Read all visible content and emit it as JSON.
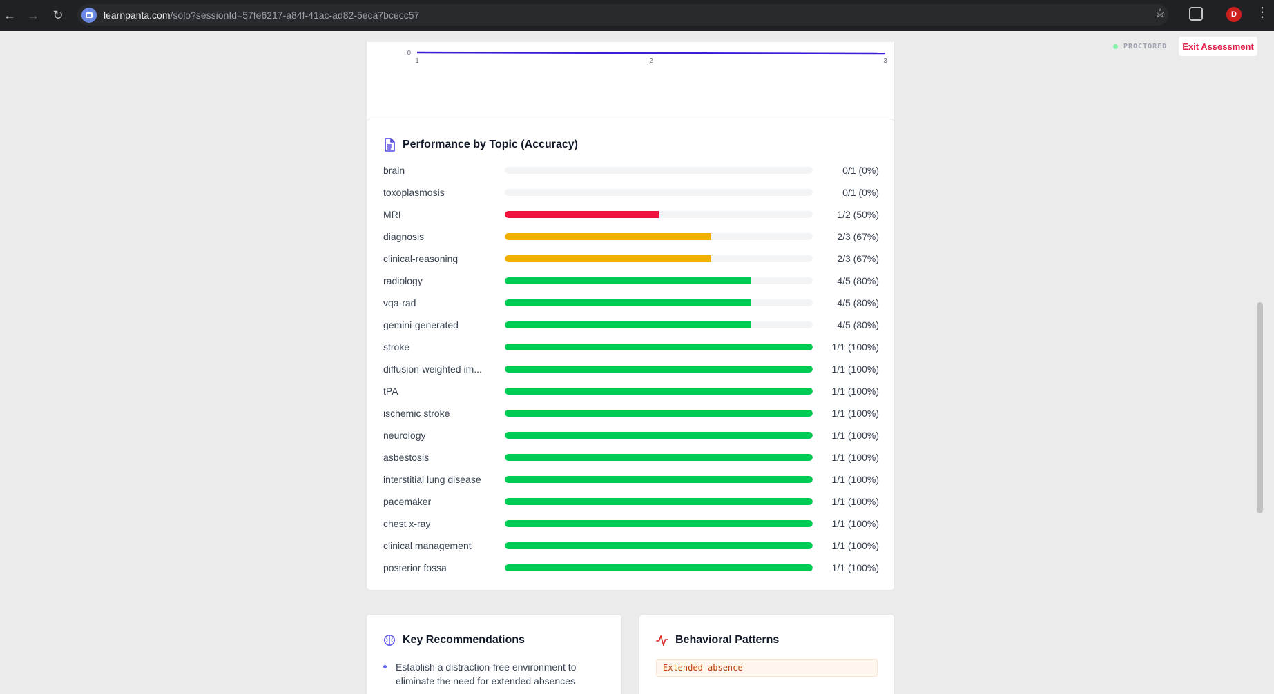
{
  "browser": {
    "url_domain": "learnpanta.com",
    "url_path": "/solo?sessionId=57fe6217-a84f-41ac-ad82-5eca7bcecc57",
    "profile_initial": "D"
  },
  "header": {
    "proctored_label": "PROCTORED",
    "exit_label": "Exit Assessment"
  },
  "trend_chart": {
    "chart_data": {
      "type": "line",
      "x": [
        1,
        2,
        3
      ],
      "values": [
        0,
        0,
        0
      ],
      "x_tick_labels": [
        "1",
        "2",
        "3"
      ],
      "y_tick_labels": [
        "0"
      ],
      "line_color": "#3b1fd6"
    }
  },
  "topics": {
    "title": "Performance by Topic (Accuracy)",
    "colors": {
      "low": "#f0143c",
      "mid": "#f0b000",
      "high": "#00cc55"
    },
    "items": [
      {
        "label": "brain",
        "score": "0/1 (0%)",
        "pct": 0,
        "level": "low"
      },
      {
        "label": "toxoplasmosis",
        "score": "0/1 (0%)",
        "pct": 0,
        "level": "low"
      },
      {
        "label": "MRI",
        "score": "1/2 (50%)",
        "pct": 50,
        "level": "low"
      },
      {
        "label": "diagnosis",
        "score": "2/3 (67%)",
        "pct": 67,
        "level": "mid"
      },
      {
        "label": "clinical-reasoning",
        "score": "2/3 (67%)",
        "pct": 67,
        "level": "mid"
      },
      {
        "label": "radiology",
        "score": "4/5 (80%)",
        "pct": 80,
        "level": "high"
      },
      {
        "label": "vqa-rad",
        "score": "4/5 (80%)",
        "pct": 80,
        "level": "high"
      },
      {
        "label": "gemini-generated",
        "score": "4/5 (80%)",
        "pct": 80,
        "level": "high"
      },
      {
        "label": "stroke",
        "score": "1/1 (100%)",
        "pct": 100,
        "level": "high"
      },
      {
        "label": "diffusion-weighted im...",
        "score": "1/1 (100%)",
        "pct": 100,
        "level": "high"
      },
      {
        "label": "tPA",
        "score": "1/1 (100%)",
        "pct": 100,
        "level": "high"
      },
      {
        "label": "ischemic stroke",
        "score": "1/1 (100%)",
        "pct": 100,
        "level": "high"
      },
      {
        "label": "neurology",
        "score": "1/1 (100%)",
        "pct": 100,
        "level": "high"
      },
      {
        "label": "asbestosis",
        "score": "1/1 (100%)",
        "pct": 100,
        "level": "high"
      },
      {
        "label": "interstitial lung disease",
        "score": "1/1 (100%)",
        "pct": 100,
        "level": "high"
      },
      {
        "label": "pacemaker",
        "score": "1/1 (100%)",
        "pct": 100,
        "level": "high"
      },
      {
        "label": "chest x-ray",
        "score": "1/1 (100%)",
        "pct": 100,
        "level": "high"
      },
      {
        "label": "clinical management",
        "score": "1/1 (100%)",
        "pct": 100,
        "level": "high"
      },
      {
        "label": "posterior fossa",
        "score": "1/1 (100%)",
        "pct": 100,
        "level": "high"
      }
    ]
  },
  "recommendations": {
    "title": "Key Recommendations",
    "items": [
      "Establish a distraction-free environment to eliminate the need for extended absences"
    ]
  },
  "behavioral": {
    "title": "Behavioral Patterns",
    "tags": [
      "Extended absence"
    ]
  }
}
